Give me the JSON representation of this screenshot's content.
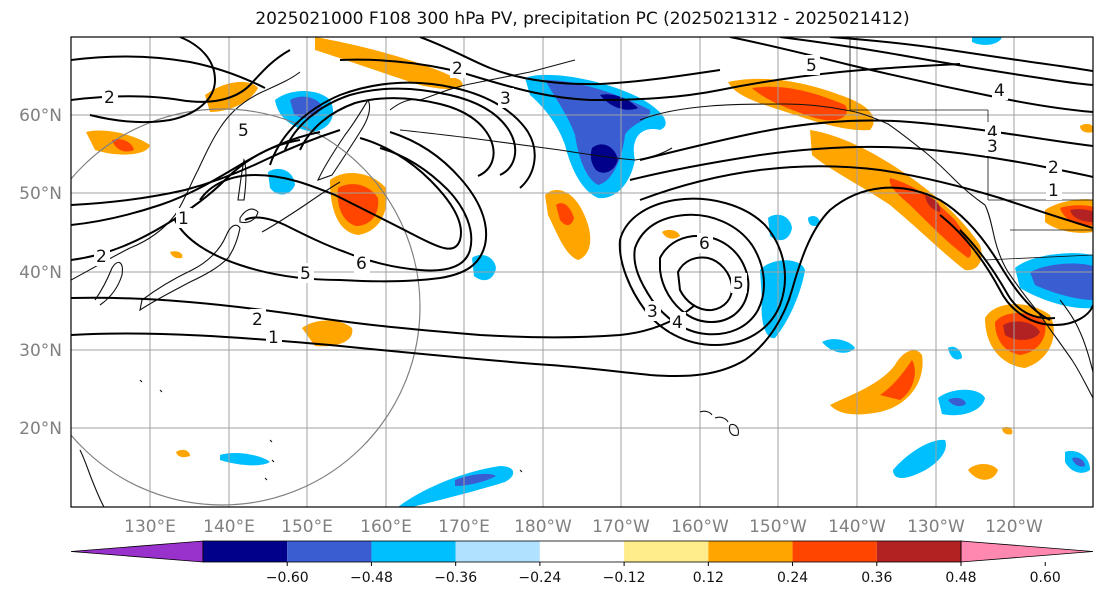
{
  "title": "2025021000 F108 300 hPa PV, precipitation PC (2025021312 - 2025021412)",
  "latitude_labels": [
    "60°N",
    "50°N",
    "40°N",
    "30°N",
    "20°N"
  ],
  "longitude_labels": [
    "130°E",
    "140°E",
    "150°E",
    "160°E",
    "170°E",
    "180°W",
    "170°W",
    "160°W",
    "150°W",
    "140°W",
    "130°W",
    "120°W"
  ],
  "contour_labels": [
    "2",
    "5",
    "2",
    "3",
    "5",
    "4",
    "4",
    "3",
    "2",
    "1",
    "1",
    "2",
    "5",
    "6",
    "2",
    "1",
    "6",
    "5",
    "3",
    "4"
  ],
  "colorbar": {
    "colors": [
      "#9932cc",
      "#00008b",
      "#3a5ed1",
      "#00bfff",
      "#b0e2ff",
      "#ffffff",
      "#ffec8b",
      "#ffa500",
      "#ff4500",
      "#b22222",
      "#ff88b0"
    ],
    "tick_labels": [
      "−0.60",
      "−0.48",
      "−0.36",
      "−0.24",
      "−0.12",
      "0.12",
      "0.24",
      "0.36",
      "0.48",
      "0.60"
    ]
  }
}
